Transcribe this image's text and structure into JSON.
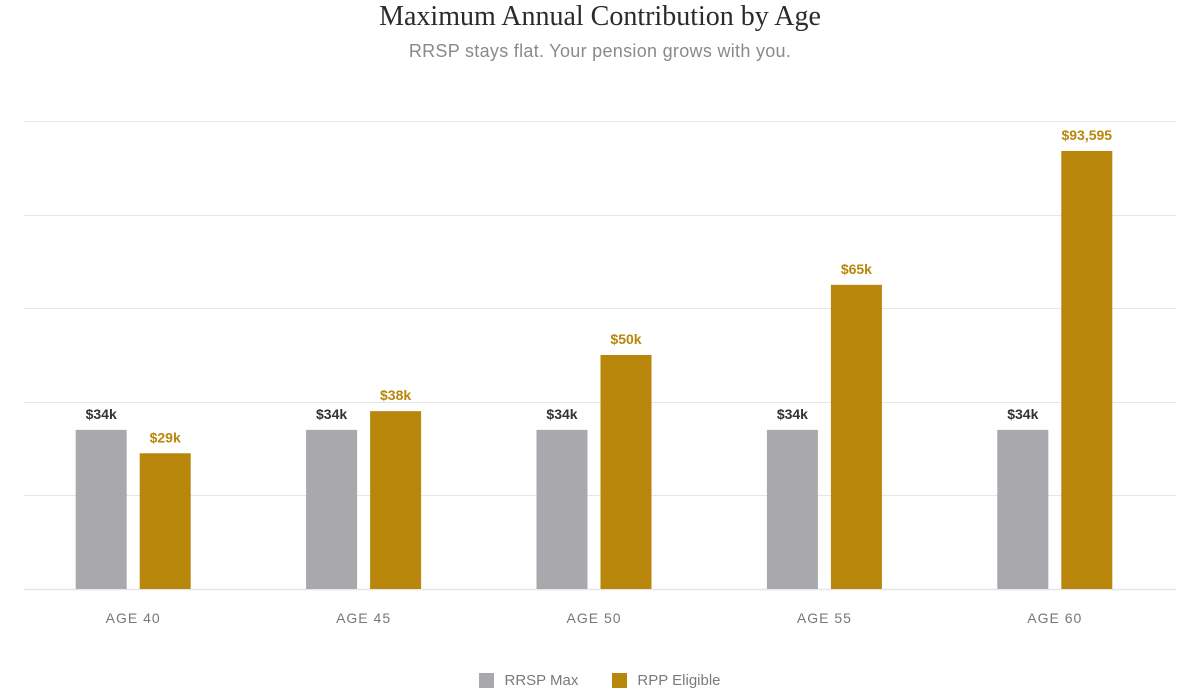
{
  "header": {
    "title": "Maximum Annual Contribution by Age",
    "subtitle": "RRSP stays flat. Your pension grows with you."
  },
  "colors": {
    "rrsp": "#a8a8ad",
    "rpp": "#b8860b",
    "rrsp_label": "#333333",
    "rpp_label": "#b8860b",
    "grid": "#e6e6e6",
    "axis_text": "#777777"
  },
  "chart_data": {
    "type": "bar",
    "categories": [
      "AGE 40",
      "AGE 45",
      "AGE 50",
      "AGE 55",
      "AGE 60"
    ],
    "series": [
      {
        "name": "RRSP Max",
        "values": [
          34000,
          34000,
          34000,
          34000,
          34000
        ],
        "labels": [
          "$34k",
          "$34k",
          "$34k",
          "$34k",
          "$34k"
        ]
      },
      {
        "name": "RPP Eligible",
        "values": [
          29000,
          38000,
          50000,
          65000,
          93595
        ],
        "labels": [
          "$29k",
          "$38k",
          "$50k",
          "$65k",
          "$93,595"
        ]
      }
    ],
    "title": "Maximum Annual Contribution by Age",
    "subtitle": "RRSP stays flat. Your pension grows with you.",
    "xlabel": "",
    "ylabel": "",
    "ylim": [
      0,
      100000
    ],
    "grid": true,
    "legend": "bottom-center"
  },
  "legend": {
    "items": [
      {
        "label": "RRSP Max",
        "color": "#a8a8ad"
      },
      {
        "label": "RPP Eligible",
        "color": "#b8860b"
      }
    ]
  }
}
